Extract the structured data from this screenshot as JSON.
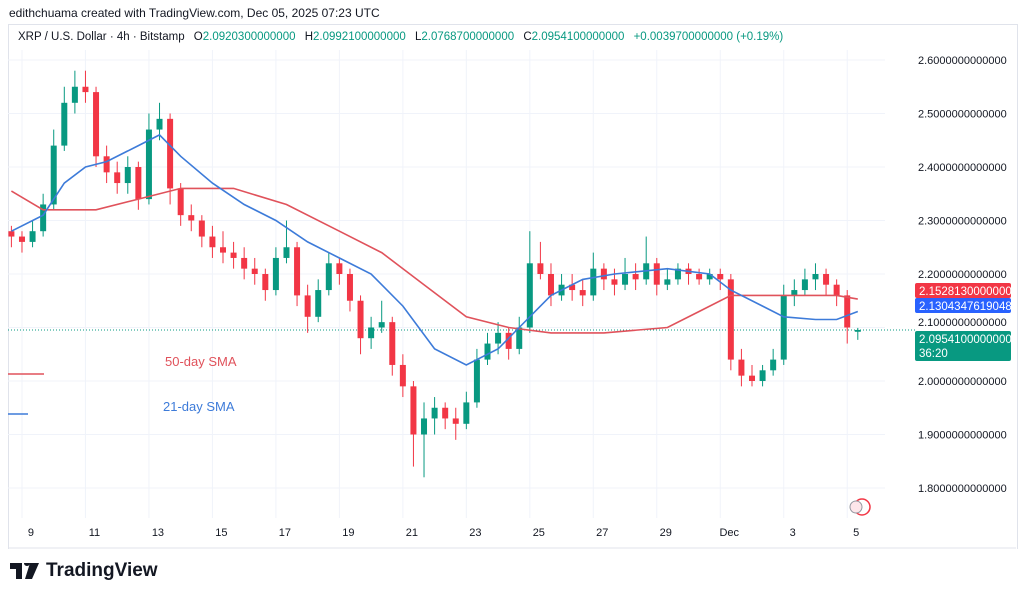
{
  "credit": "edithchuama created with TradingView.com, Dec 05, 2025 07:23 UTC",
  "legend": {
    "symbol": "XRP / U.S. Dollar · 4h · Bitstamp",
    "o_label": "O",
    "o": "2.0920300000000",
    "h_label": "H",
    "h": "2.0992100000000",
    "l_label": "L",
    "l": "2.0768700000000",
    "c_label": "C",
    "c": "2.0954100000000",
    "change": "+0.0039700000000 (+0.19%)"
  },
  "brand": "TradingView",
  "colors": {
    "up": "#089981",
    "down": "#f23645",
    "sma50": "#e0525b",
    "sma21": "#3d7bd9",
    "last": "#089981"
  },
  "chart_data": {
    "type": "candlestick",
    "ylim": [
      1.76,
      2.64
    ],
    "yticks": [
      "2.6000000000000",
      "2.5000000000000",
      "2.4000000000000",
      "2.3000000000000",
      "2.2000000000000",
      "2.1000000000000",
      "2.0000000000000",
      "1.9000000000000",
      "1.8000000000000"
    ],
    "ytick_values": [
      2.6,
      2.5,
      2.4,
      2.3,
      2.2,
      2.1,
      2.0,
      1.9,
      1.8
    ],
    "xticks": [
      {
        "label": "9",
        "candle": 1
      },
      {
        "label": "11",
        "candle": 7
      },
      {
        "label": "13",
        "candle": 13
      },
      {
        "label": "15",
        "candle": 19
      },
      {
        "label": "17",
        "candle": 25
      },
      {
        "label": "19",
        "candle": 31
      },
      {
        "label": "21",
        "candle": 37
      },
      {
        "label": "23",
        "candle": 43
      },
      {
        "label": "25",
        "candle": 49
      },
      {
        "label": "27",
        "candle": 55
      },
      {
        "label": "29",
        "candle": 61
      },
      {
        "label": "Dec",
        "candle": 67
      },
      {
        "label": "3",
        "candle": 73
      },
      {
        "label": "5",
        "candle": 79
      }
    ],
    "candles": [
      [
        2.28,
        2.29,
        2.25,
        2.27
      ],
      [
        2.27,
        2.28,
        2.24,
        2.26
      ],
      [
        2.26,
        2.3,
        2.25,
        2.28
      ],
      [
        2.28,
        2.35,
        2.27,
        2.33
      ],
      [
        2.33,
        2.47,
        2.32,
        2.44
      ],
      [
        2.44,
        2.55,
        2.43,
        2.52
      ],
      [
        2.52,
        2.58,
        2.5,
        2.55
      ],
      [
        2.55,
        2.58,
        2.52,
        2.54
      ],
      [
        2.54,
        2.55,
        2.4,
        2.42
      ],
      [
        2.42,
        2.44,
        2.37,
        2.39
      ],
      [
        2.39,
        2.41,
        2.35,
        2.37
      ],
      [
        2.37,
        2.42,
        2.35,
        2.4
      ],
      [
        2.4,
        2.41,
        2.32,
        2.34
      ],
      [
        2.34,
        2.5,
        2.33,
        2.47
      ],
      [
        2.47,
        2.52,
        2.45,
        2.49
      ],
      [
        2.49,
        2.5,
        2.33,
        2.36
      ],
      [
        2.36,
        2.37,
        2.29,
        2.31
      ],
      [
        2.31,
        2.33,
        2.28,
        2.3
      ],
      [
        2.3,
        2.31,
        2.25,
        2.27
      ],
      [
        2.27,
        2.29,
        2.23,
        2.25
      ],
      [
        2.25,
        2.28,
        2.22,
        2.24
      ],
      [
        2.24,
        2.26,
        2.21,
        2.23
      ],
      [
        2.23,
        2.25,
        2.19,
        2.21
      ],
      [
        2.21,
        2.23,
        2.18,
        2.2
      ],
      [
        2.2,
        2.21,
        2.15,
        2.17
      ],
      [
        2.17,
        2.25,
        2.16,
        2.23
      ],
      [
        2.23,
        2.3,
        2.22,
        2.25
      ],
      [
        2.25,
        2.26,
        2.14,
        2.16
      ],
      [
        2.16,
        2.18,
        2.09,
        2.12
      ],
      [
        2.12,
        2.19,
        2.11,
        2.17
      ],
      [
        2.17,
        2.24,
        2.16,
        2.22
      ],
      [
        2.22,
        2.23,
        2.18,
        2.2
      ],
      [
        2.2,
        2.21,
        2.13,
        2.15
      ],
      [
        2.15,
        2.16,
        2.05,
        2.08
      ],
      [
        2.08,
        2.12,
        2.06,
        2.1
      ],
      [
        2.1,
        2.15,
        2.09,
        2.11
      ],
      [
        2.11,
        2.12,
        2.01,
        2.03
      ],
      [
        2.03,
        2.05,
        1.97,
        1.99
      ],
      [
        1.99,
        2.0,
        1.84,
        1.9
      ],
      [
        1.9,
        1.96,
        1.82,
        1.93
      ],
      [
        1.93,
        1.97,
        1.9,
        1.95
      ],
      [
        1.95,
        1.96,
        1.91,
        1.93
      ],
      [
        1.93,
        1.95,
        1.89,
        1.92
      ],
      [
        1.92,
        1.98,
        1.91,
        1.96
      ],
      [
        1.96,
        2.06,
        1.95,
        2.04
      ],
      [
        2.04,
        2.09,
        2.03,
        2.07
      ],
      [
        2.07,
        2.11,
        2.05,
        2.09
      ],
      [
        2.09,
        2.1,
        2.04,
        2.06
      ],
      [
        2.06,
        2.12,
        2.05,
        2.1
      ],
      [
        2.1,
        2.28,
        2.09,
        2.22
      ],
      [
        2.22,
        2.26,
        2.19,
        2.2
      ],
      [
        2.2,
        2.22,
        2.14,
        2.16
      ],
      [
        2.16,
        2.2,
        2.15,
        2.18
      ],
      [
        2.18,
        2.2,
        2.15,
        2.17
      ],
      [
        2.17,
        2.19,
        2.14,
        2.16
      ],
      [
        2.16,
        2.24,
        2.15,
        2.21
      ],
      [
        2.21,
        2.22,
        2.17,
        2.19
      ],
      [
        2.19,
        2.21,
        2.16,
        2.18
      ],
      [
        2.18,
        2.23,
        2.17,
        2.2
      ],
      [
        2.2,
        2.22,
        2.17,
        2.19
      ],
      [
        2.19,
        2.27,
        2.18,
        2.22
      ],
      [
        2.22,
        2.23,
        2.16,
        2.18
      ],
      [
        2.18,
        2.21,
        2.17,
        2.19
      ],
      [
        2.19,
        2.22,
        2.18,
        2.21
      ],
      [
        2.21,
        2.22,
        2.18,
        2.2
      ],
      [
        2.2,
        2.21,
        2.18,
        2.19
      ],
      [
        2.19,
        2.21,
        2.18,
        2.2
      ],
      [
        2.2,
        2.21,
        2.17,
        2.19
      ],
      [
        2.19,
        2.2,
        2.02,
        2.04
      ],
      [
        2.04,
        2.06,
        1.99,
        2.01
      ],
      [
        2.01,
        2.03,
        1.99,
        2.0
      ],
      [
        2.0,
        2.03,
        1.99,
        2.02
      ],
      [
        2.02,
        2.06,
        2.01,
        2.04
      ],
      [
        2.04,
        2.18,
        2.03,
        2.16
      ],
      [
        2.16,
        2.19,
        2.14,
        2.17
      ],
      [
        2.17,
        2.21,
        2.16,
        2.19
      ],
      [
        2.19,
        2.22,
        2.17,
        2.2
      ],
      [
        2.2,
        2.21,
        2.16,
        2.18
      ],
      [
        2.18,
        2.19,
        2.14,
        2.16
      ],
      [
        2.16,
        2.17,
        2.07,
        2.1
      ],
      [
        2.092,
        2.0992,
        2.0769,
        2.0954
      ]
    ],
    "series": [
      {
        "name": "50-day SMA",
        "last": "2.1528130000000",
        "points": [
          [
            0,
            2.355
          ],
          [
            3,
            2.32
          ],
          [
            8,
            2.32
          ],
          [
            12,
            2.34
          ],
          [
            16,
            2.36
          ],
          [
            21,
            2.36
          ],
          [
            26,
            2.33
          ],
          [
            31,
            2.28
          ],
          [
            35,
            2.24
          ],
          [
            39,
            2.18
          ],
          [
            43,
            2.12
          ],
          [
            47,
            2.1
          ],
          [
            51,
            2.09
          ],
          [
            56,
            2.09
          ],
          [
            62,
            2.1
          ],
          [
            65,
            2.13
          ],
          [
            68,
            2.16
          ],
          [
            74,
            2.16
          ],
          [
            78,
            2.16
          ],
          [
            80,
            2.153
          ]
        ]
      },
      {
        "name": "21-day SMA",
        "last": "2.1304347619048",
        "points": [
          [
            0,
            2.28
          ],
          [
            3,
            2.31
          ],
          [
            5,
            2.37
          ],
          [
            7,
            2.4
          ],
          [
            9,
            2.41
          ],
          [
            12,
            2.44
          ],
          [
            14,
            2.46
          ],
          [
            16,
            2.42
          ],
          [
            19,
            2.37
          ],
          [
            22,
            2.33
          ],
          [
            25,
            2.3
          ],
          [
            28,
            2.26
          ],
          [
            31,
            2.23
          ],
          [
            34,
            2.2
          ],
          [
            37,
            2.14
          ],
          [
            40,
            2.06
          ],
          [
            43,
            2.03
          ],
          [
            46,
            2.06
          ],
          [
            48,
            2.1
          ],
          [
            51,
            2.16
          ],
          [
            54,
            2.19
          ],
          [
            57,
            2.2
          ],
          [
            62,
            2.21
          ],
          [
            66,
            2.2
          ],
          [
            68,
            2.17
          ],
          [
            71,
            2.14
          ],
          [
            73,
            2.12
          ],
          [
            76,
            2.115
          ],
          [
            78,
            2.115
          ],
          [
            80,
            2.13
          ]
        ]
      }
    ],
    "last_price": "2.0954100000000",
    "last_value": 2.09541,
    "countdown": "36:20"
  }
}
